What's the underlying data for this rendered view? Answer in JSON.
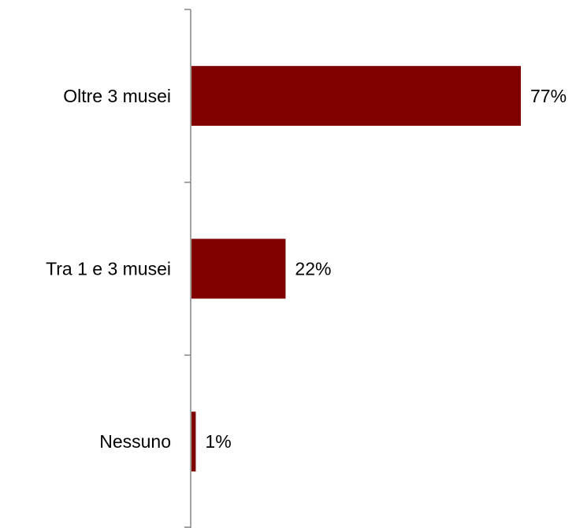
{
  "chart_data": {
    "type": "bar",
    "orientation": "horizontal",
    "categories": [
      "Oltre 3 musei",
      "Tra 1 e 3 musei",
      "Nessuno"
    ],
    "values": [
      77,
      22,
      1
    ],
    "value_labels": [
      "77%",
      "22%",
      "1%"
    ],
    "unit": "%",
    "xlim": [
      0,
      77
    ],
    "title": "",
    "xlabel": "",
    "ylabel": "",
    "grid": false,
    "legend": "none",
    "bar_color": "#800000",
    "axis_color": "#868686"
  }
}
